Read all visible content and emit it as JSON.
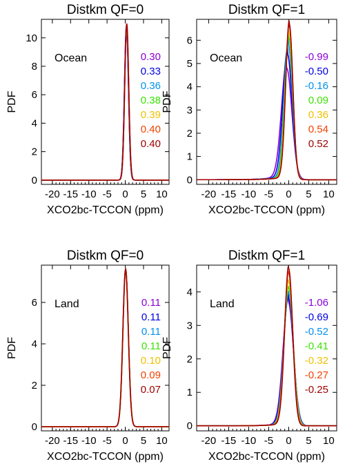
{
  "colors": [
    "#8B00D8",
    "#0000E0",
    "#0090F0",
    "#3BE000",
    "#F0C000",
    "#F04000",
    "#A00000"
  ],
  "chart_data": [
    {
      "type": "line",
      "title": "Distkm QF=0",
      "xlabel": "XCO2bc-TCCON (ppm)",
      "ylabel": "PDF",
      "region": "Ocean",
      "xlim": [
        -23,
        12
      ],
      "ylim": [
        -0.3,
        11.3
      ],
      "xticks": [
        "-20",
        "-15",
        "-10",
        "-5",
        "0",
        "5",
        "10"
      ],
      "yticks": [
        "0",
        "2",
        "4",
        "6",
        "8",
        "10"
      ],
      "legend_values": [
        "0.30",
        "0.33",
        "0.36",
        "0.38",
        "0.39",
        "0.40",
        "0.40"
      ],
      "series": [
        {
          "peak": 10.8,
          "center": 0.3,
          "width": 0.55,
          "tail": 0.0
        },
        {
          "peak": 10.8,
          "center": 0.33,
          "width": 0.55,
          "tail": 0.0
        },
        {
          "peak": 10.8,
          "center": 0.36,
          "width": 0.55,
          "tail": 0.0
        },
        {
          "peak": 10.9,
          "center": 0.38,
          "width": 0.55,
          "tail": 0.0
        },
        {
          "peak": 10.9,
          "center": 0.39,
          "width": 0.55,
          "tail": 0.0
        },
        {
          "peak": 11.0,
          "center": 0.4,
          "width": 0.55,
          "tail": 0.0
        },
        {
          "peak": 11.0,
          "center": 0.4,
          "width": 0.55,
          "tail": 0.0
        }
      ]
    },
    {
      "type": "line",
      "title": "Distkm QF=1",
      "xlabel": "XCO2bc-TCCON (ppm)",
      "ylabel": "PDF",
      "region": "Ocean",
      "xlim": [
        -23,
        12
      ],
      "ylim": [
        -0.2,
        6.9
      ],
      "xticks": [
        "-20",
        "-15",
        "-10",
        "-5",
        "0",
        "5",
        "10"
      ],
      "yticks": [
        "0",
        "1",
        "2",
        "3",
        "4",
        "5",
        "6"
      ],
      "legend_values": [
        "-0.99",
        "-0.50",
        "-0.16",
        "0.09",
        "0.36",
        "0.54",
        "0.52"
      ],
      "series": [
        {
          "peak": 4.8,
          "center": -0.5,
          "width": 1.3,
          "tail": 0.9
        },
        {
          "peak": 5.4,
          "center": -0.3,
          "width": 1.15,
          "tail": 0.75
        },
        {
          "peak": 5.8,
          "center": -0.1,
          "width": 1.05,
          "tail": 0.6
        },
        {
          "peak": 6.1,
          "center": 0.0,
          "width": 1.0,
          "tail": 0.5
        },
        {
          "peak": 6.3,
          "center": 0.1,
          "width": 0.95,
          "tail": 0.45
        },
        {
          "peak": 6.6,
          "center": 0.15,
          "width": 0.9,
          "tail": 0.4
        },
        {
          "peak": 6.7,
          "center": 0.15,
          "width": 0.9,
          "tail": 0.4
        }
      ]
    },
    {
      "type": "line",
      "title": "Distkm QF=0",
      "xlabel": "XCO2bc-TCCON (ppm)",
      "ylabel": "PDF",
      "region": "Land",
      "xlim": [
        -23,
        12
      ],
      "ylim": [
        -0.2,
        7.8
      ],
      "xticks": [
        "-20",
        "-15",
        "-10",
        "-5",
        "0",
        "5",
        "10"
      ],
      "yticks": [
        "0",
        "2",
        "4",
        "6"
      ],
      "legend_values": [
        "0.11",
        "0.11",
        "0.11",
        "0.11",
        "0.10",
        "0.09",
        "0.07"
      ],
      "series": [
        {
          "peak": 7.6,
          "center": 0.11,
          "width": 0.75,
          "tail": 0.0
        },
        {
          "peak": 7.6,
          "center": 0.11,
          "width": 0.75,
          "tail": 0.0
        },
        {
          "peak": 7.6,
          "center": 0.11,
          "width": 0.75,
          "tail": 0.0
        },
        {
          "peak": 7.6,
          "center": 0.11,
          "width": 0.75,
          "tail": 0.0
        },
        {
          "peak": 7.6,
          "center": 0.1,
          "width": 0.75,
          "tail": 0.0
        },
        {
          "peak": 7.6,
          "center": 0.09,
          "width": 0.75,
          "tail": 0.0
        },
        {
          "peak": 7.6,
          "center": 0.07,
          "width": 0.75,
          "tail": 0.0
        }
      ]
    },
    {
      "type": "line",
      "title": "Distkm QF=1",
      "xlabel": "XCO2bc-TCCON (ppm)",
      "ylabel": "PDF",
      "region": "Land",
      "xlim": [
        -23,
        12
      ],
      "ylim": [
        -0.15,
        4.8
      ],
      "xticks": [
        "-20",
        "-15",
        "-10",
        "-5",
        "0",
        "5",
        "10"
      ],
      "yticks": [
        "0",
        "1",
        "2",
        "3",
        "4"
      ],
      "legend_values": [
        "-1.06",
        "-0.69",
        "-0.52",
        "-0.41",
        "-0.32",
        "-0.27",
        "-0.25"
      ],
      "series": [
        {
          "peak": 3.7,
          "center": -0.1,
          "width": 1.3,
          "tail": 0.55
        },
        {
          "peak": 3.8,
          "center": -0.05,
          "width": 1.25,
          "tail": 0.45
        },
        {
          "peak": 3.95,
          "center": 0.0,
          "width": 1.2,
          "tail": 0.42
        },
        {
          "peak": 4.1,
          "center": 0.0,
          "width": 1.15,
          "tail": 0.4
        },
        {
          "peak": 4.3,
          "center": 0.0,
          "width": 1.1,
          "tail": 0.38
        },
        {
          "peak": 4.55,
          "center": 0.0,
          "width": 1.05,
          "tail": 0.37
        },
        {
          "peak": 4.7,
          "center": 0.0,
          "width": 1.0,
          "tail": 0.36
        }
      ]
    }
  ]
}
